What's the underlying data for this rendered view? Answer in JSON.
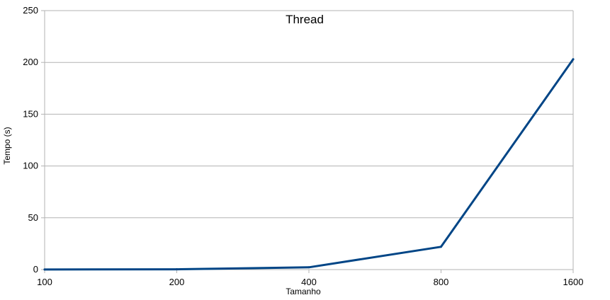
{
  "chart_data": {
    "type": "line",
    "title": "Thread",
    "xlabel": "Tamanho",
    "ylabel": "Tempo (s)",
    "categories": [
      "100",
      "200",
      "400",
      "800",
      "1600"
    ],
    "series": [
      {
        "values": [
          0.1,
          0.3,
          2.2,
          22,
          203
        ],
        "color": "#004586"
      }
    ],
    "ylim": [
      0,
      250
    ],
    "yticks": [
      "0",
      "50",
      "100",
      "150",
      "200",
      "250"
    ],
    "grid": true,
    "legend": "none"
  }
}
